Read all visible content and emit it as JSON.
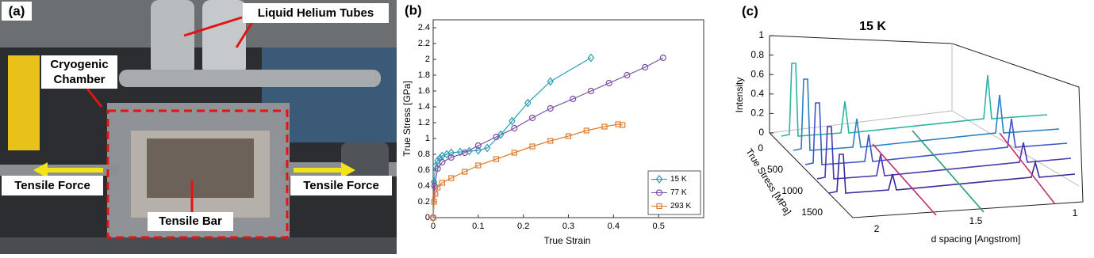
{
  "photo": {
    "panel_label": "(a)",
    "helium_tubes": "Liquid Helium Tubes",
    "chamber": [
      "Cryogenic",
      "Chamber"
    ],
    "force_left": "Tensile Force",
    "force_right": "Tensile Force",
    "bar": "Tensile Bar"
  },
  "chart_data": {
    "type": "line",
    "panel_label": "(b)",
    "x_label": "True Strain",
    "y_label": "True Stress [GPa]",
    "xlim": [
      0,
      0.6
    ],
    "xticks": [
      0,
      0.1,
      0.2,
      0.3,
      0.4,
      0.5
    ],
    "ylim": [
      0,
      2.5
    ],
    "yticks": [
      0,
      0.2,
      0.4,
      0.6,
      0.8,
      1,
      1.2,
      1.4,
      1.6,
      1.8,
      2,
      2.2,
      2.4
    ],
    "legend": "lower right",
    "series": [
      {
        "name": "15 K",
        "color": "#2a9db5",
        "marker": "diamond",
        "x": [
          0,
          0.002,
          0.005,
          0.01,
          0.015,
          0.02,
          0.03,
          0.04,
          0.06,
          0.08,
          0.1,
          0.12,
          0.15,
          0.175,
          0.21,
          0.26,
          0.35
        ],
        "values": [
          0,
          0.45,
          0.65,
          0.72,
          0.75,
          0.78,
          0.8,
          0.82,
          0.83,
          0.84,
          0.85,
          0.88,
          1.05,
          1.22,
          1.45,
          1.72,
          2.02
        ]
      },
      {
        "name": "77 K",
        "color": "#7e4fa8",
        "marker": "circle",
        "x": [
          0,
          0.003,
          0.01,
          0.02,
          0.04,
          0.07,
          0.1,
          0.14,
          0.18,
          0.22,
          0.26,
          0.31,
          0.35,
          0.39,
          0.43,
          0.47,
          0.51
        ],
        "values": [
          0,
          0.4,
          0.62,
          0.7,
          0.76,
          0.82,
          0.91,
          1.02,
          1.13,
          1.26,
          1.38,
          1.5,
          1.6,
          1.7,
          1.8,
          1.9,
          2.02
        ]
      },
      {
        "name": "293 K",
        "color": "#e07b2c",
        "marker": "square",
        "x": [
          0,
          0.002,
          0.005,
          0.01,
          0.02,
          0.04,
          0.07,
          0.1,
          0.14,
          0.18,
          0.22,
          0.26,
          0.3,
          0.34,
          0.38,
          0.41,
          0.42
        ],
        "values": [
          0,
          0.2,
          0.3,
          0.38,
          0.44,
          0.5,
          0.58,
          0.66,
          0.74,
          0.82,
          0.9,
          0.97,
          1.03,
          1.1,
          1.15,
          1.18,
          1.17
        ]
      }
    ]
  },
  "waterfall": {
    "panel_label": "(c)",
    "title": "15 K",
    "z_label": "Intensity",
    "y_label": "True Stress [MPa]",
    "x_label": "d spacing [Angstrom]",
    "zticks": [
      0,
      0.2,
      0.4,
      0.6,
      0.8,
      1
    ],
    "yticks": [
      0,
      500,
      1000,
      1500
    ],
    "xticks": [
      2,
      1.5,
      1
    ]
  }
}
